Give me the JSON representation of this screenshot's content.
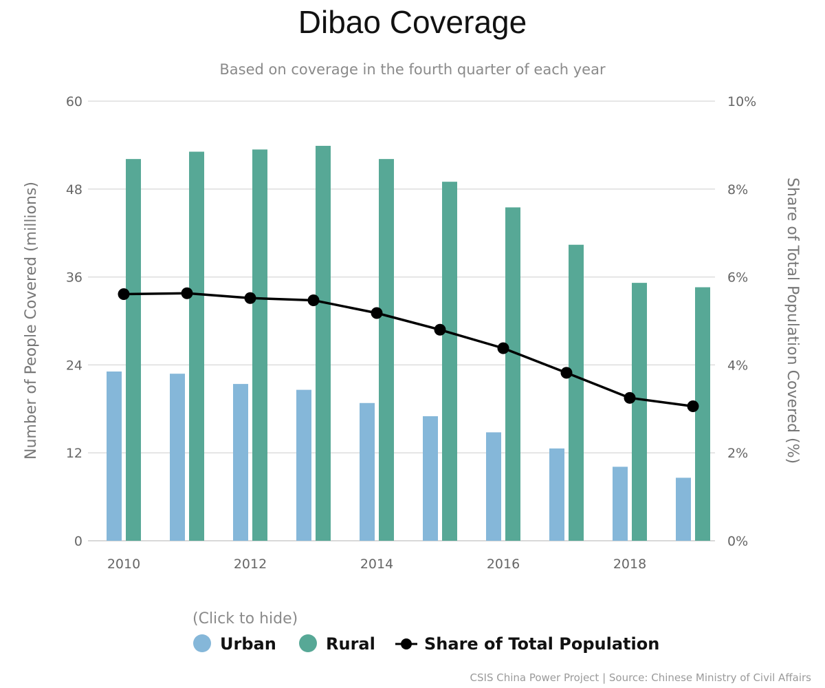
{
  "header": {
    "title": "Dibao Coverage",
    "subtitle": "Based on coverage in the fourth quarter of each year"
  },
  "legend": {
    "hint": "(Click to hide)",
    "items": [
      {
        "label": "Urban",
        "color": "#85b7d9",
        "icon": "circle-marker-icon"
      },
      {
        "label": "Rural",
        "color": "#57a896",
        "icon": "circle-marker-icon"
      },
      {
        "label": "Share of Total Population",
        "color": "#000000",
        "icon": "line-marker-icon"
      }
    ]
  },
  "credit": "CSIS China Power Project | Source: Chinese Ministry of Civil Affairs",
  "chart_data": {
    "type": "bar",
    "x": [
      2010,
      2011,
      2012,
      2013,
      2014,
      2015,
      2016,
      2017,
      2018,
      2019
    ],
    "x_tick_labels": [
      "2010",
      "2012",
      "2014",
      "2016",
      "2018"
    ],
    "ylabel": "Number of People Covered (millions)",
    "ylim": [
      0,
      60
    ],
    "y_ticks": [
      "0",
      "12",
      "24",
      "36",
      "48",
      "60"
    ],
    "y2label": "Share of Total Population Covered (%)",
    "y2lim": [
      0,
      10
    ],
    "y2_ticks": [
      "0%",
      "2%",
      "4%",
      "6%",
      "8%",
      "10%"
    ],
    "grid": true,
    "legend_position": "bottom",
    "series": [
      {
        "name": "Urban",
        "type": "bar",
        "axis": "left",
        "color": "#85b7d9",
        "values": [
          23.1,
          22.8,
          21.4,
          20.6,
          18.8,
          17.0,
          14.8,
          12.6,
          10.1,
          8.6
        ]
      },
      {
        "name": "Rural",
        "type": "bar",
        "axis": "left",
        "color": "#57a896",
        "values": [
          52.1,
          53.1,
          53.4,
          53.9,
          52.1,
          49.0,
          45.5,
          40.4,
          35.2,
          34.6
        ]
      },
      {
        "name": "Share of Total Population",
        "type": "line",
        "axis": "right",
        "color": "#000000",
        "values": [
          5.61,
          5.63,
          5.52,
          5.47,
          5.18,
          4.8,
          4.38,
          3.82,
          3.25,
          3.06
        ]
      }
    ]
  }
}
